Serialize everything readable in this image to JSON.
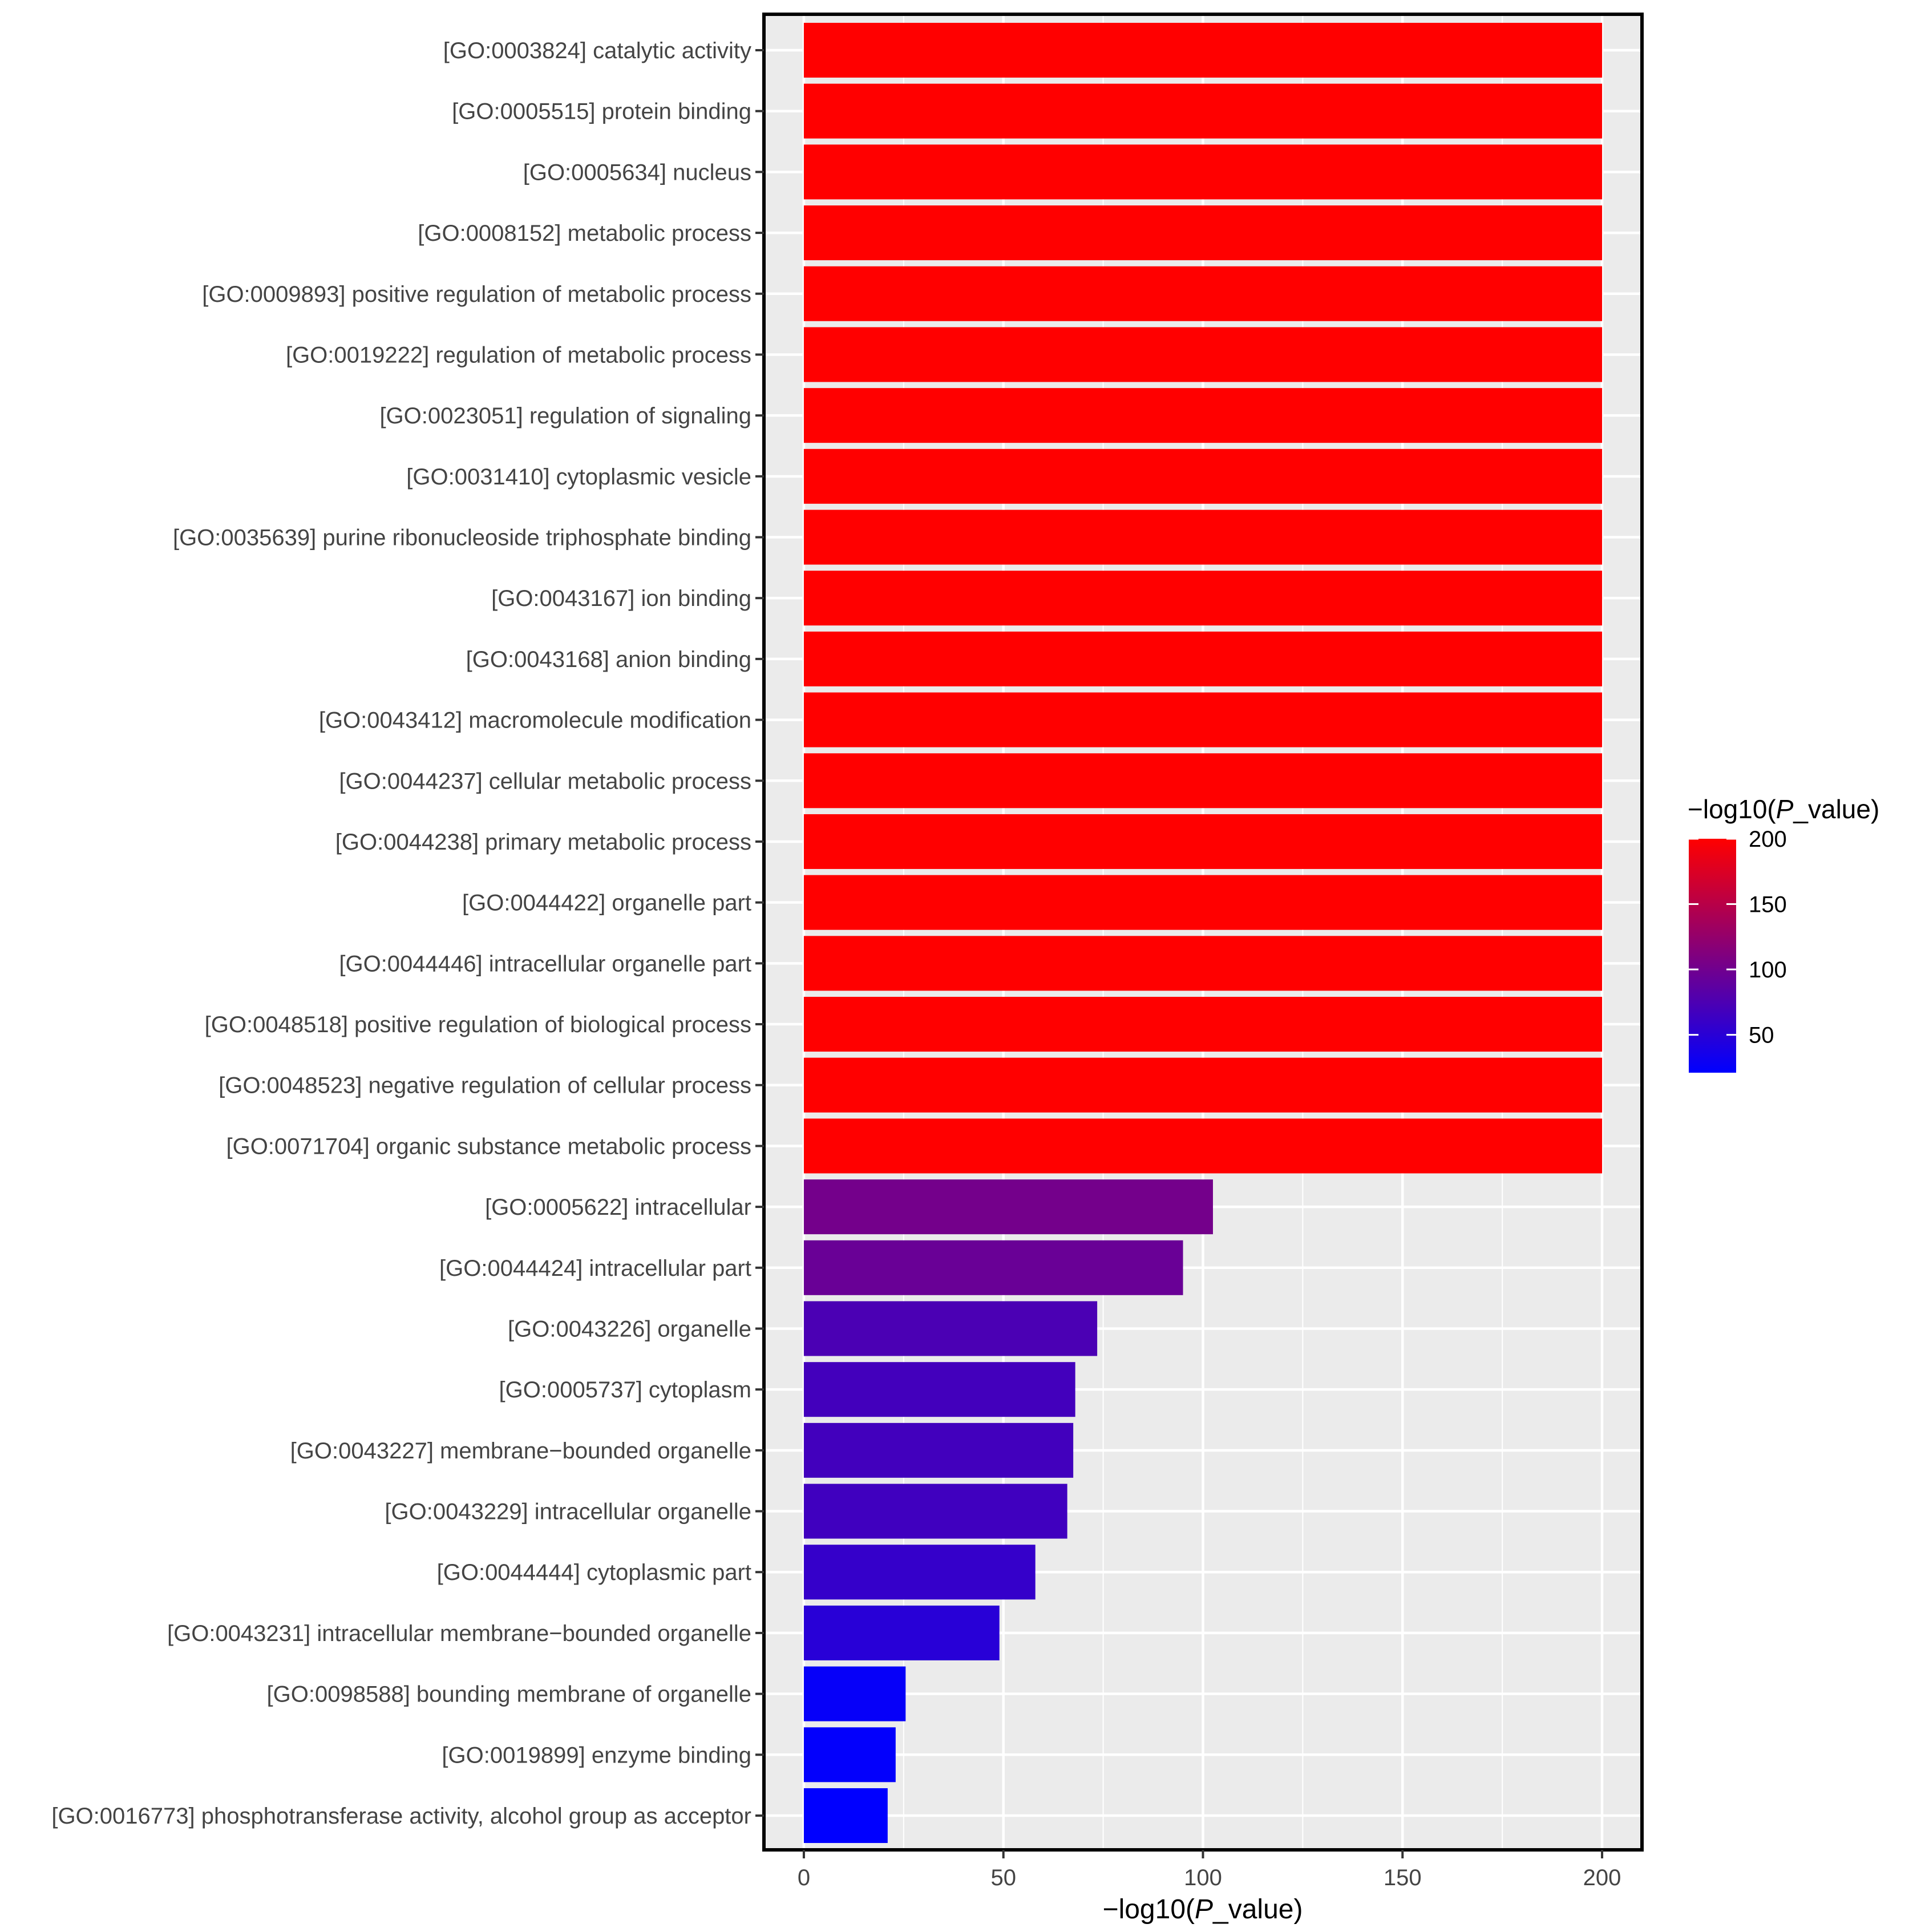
{
  "chart_data": {
    "type": "bar",
    "orientation": "horizontal",
    "title": "",
    "xlabel": "-log10(P_value)",
    "xlabel_parts": {
      "prefix": "−log10(",
      "italic": "P",
      "suffix": "_value)"
    },
    "ylabel": "",
    "xlim": [
      -10,
      210
    ],
    "xticks": [
      0,
      50,
      100,
      150,
      200
    ],
    "grid": true,
    "categories": [
      "[GO:0003824] catalytic activity",
      "[GO:0005515] protein binding",
      "[GO:0005634] nucleus",
      "[GO:0008152] metabolic process",
      "[GO:0009893] positive regulation of metabolic process",
      "[GO:0019222] regulation of metabolic process",
      "[GO:0023051] regulation of signaling",
      "[GO:0031410] cytoplasmic vesicle",
      "[GO:0035639] purine ribonucleoside triphosphate binding",
      "[GO:0043167] ion binding",
      "[GO:0043168] anion binding",
      "[GO:0043412] macromolecule modification",
      "[GO:0044237] cellular metabolic process",
      "[GO:0044238] primary metabolic process",
      "[GO:0044422] organelle part",
      "[GO:0044446] intracellular organelle part",
      "[GO:0048518] positive regulation of biological process",
      "[GO:0048523] negative regulation of cellular process",
      "[GO:0071704] organic substance metabolic process",
      "[GO:0005622] intracellular",
      "[GO:0044424] intracellular part",
      "[GO:0043226] organelle",
      "[GO:0005737] cytoplasm",
      "[GO:0043227] membrane−bounded organelle",
      "[GO:0043229] intracellular organelle",
      "[GO:0044444] cytoplasmic part",
      "[GO:0043231] intracellular membrane−bounded organelle",
      "[GO:0098588] bounding membrane of organelle",
      "[GO:0019899] enzyme binding",
      "[GO:0016773] phosphotransferase activity, alcohol group as acceptor"
    ],
    "values": [
      200,
      200,
      200,
      200,
      200,
      200,
      200,
      200,
      200,
      200,
      200,
      200,
      200,
      200,
      200,
      200,
      200,
      200,
      200,
      102.5,
      95,
      73.5,
      68,
      67.5,
      66,
      58,
      49,
      25.5,
      23,
      21
    ],
    "color_scale": {
      "title": "-log10(P_value)",
      "title_parts": {
        "prefix": "−log10(",
        "italic": "P",
        "suffix": "_value)"
      },
      "low_color": "#0000ff",
      "high_color": "#ff0000",
      "domain": [
        21,
        200
      ],
      "breaks": [
        200,
        150,
        100,
        50
      ],
      "placement": "right"
    },
    "colors": {
      "panel_background": "#ebebeb",
      "grid": "#ffffff",
      "border": "#000000"
    }
  }
}
